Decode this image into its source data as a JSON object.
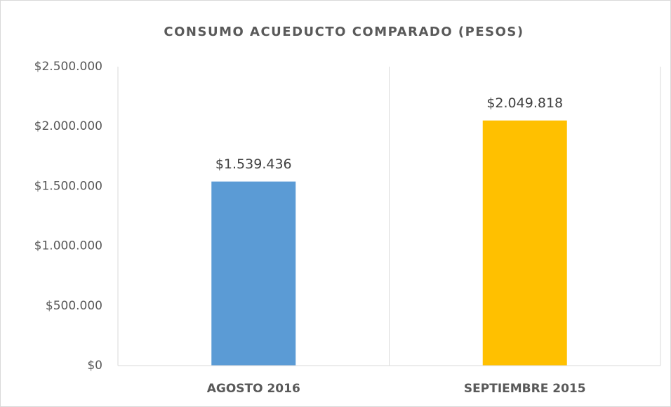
{
  "chart_data": {
    "type": "bar",
    "title": "CONSUMO ACUEDUCTO COMPARADO (PESOS)",
    "categories": [
      "AGOSTO 2016",
      "SEPTIEMBRE 2015"
    ],
    "values": [
      1539436,
      2049818
    ],
    "value_labels": [
      "$1.539.436",
      "$2.049.818"
    ],
    "colors": [
      "#5b9bd5",
      "#ffc000"
    ],
    "ylim": [
      0,
      2500000
    ],
    "yticks": [
      {
        "value": 0,
        "label": "$0"
      },
      {
        "value": 500000,
        "label": "$500.000"
      },
      {
        "value": 1000000,
        "label": "$1.000.000"
      },
      {
        "value": 1500000,
        "label": "$1.500.000"
      },
      {
        "value": 2000000,
        "label": "$2.000.000"
      },
      {
        "value": 2500000,
        "label": "$2.500.000"
      }
    ],
    "grid": false
  }
}
